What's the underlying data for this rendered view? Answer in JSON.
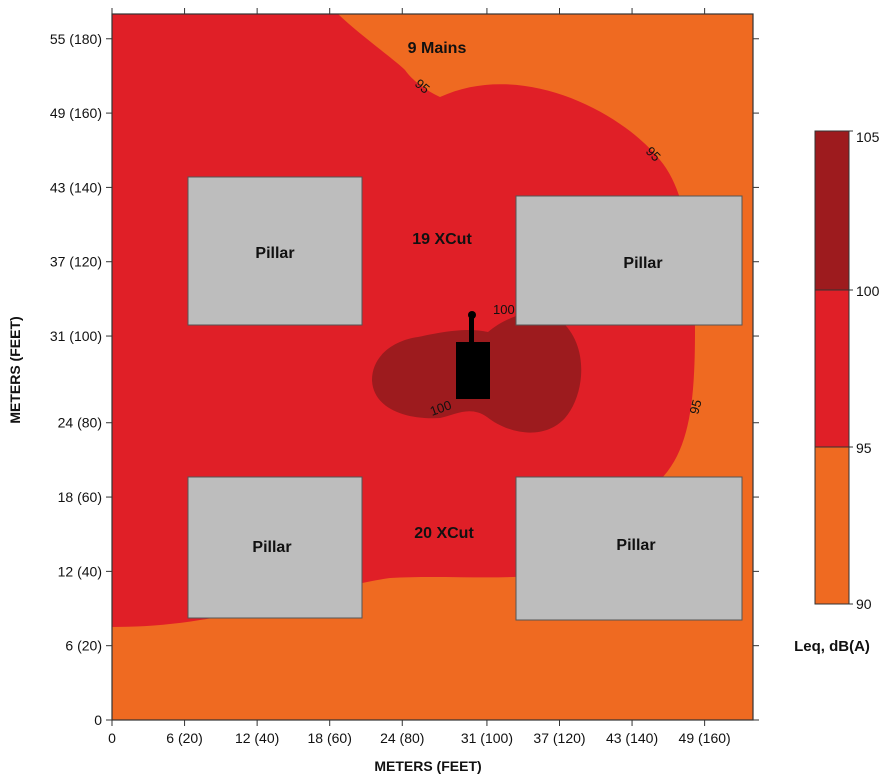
{
  "chart_data": {
    "type": "heatmap",
    "title": "",
    "xlabel": "METERS (FEET)",
    "ylabel": "METERS (FEET)",
    "xlim": [
      0,
      53
    ],
    "ylim": [
      0,
      57
    ],
    "x_ticks": [
      {
        "value": 0,
        "label": "0"
      },
      {
        "value": 6,
        "label": "6 (20)"
      },
      {
        "value": 12,
        "label": "12 (40)"
      },
      {
        "value": 18,
        "label": "18 (60)"
      },
      {
        "value": 24,
        "label": "24 (80)"
      },
      {
        "value": 31,
        "label": "31 (100)"
      },
      {
        "value": 37,
        "label": "37 (120)"
      },
      {
        "value": 43,
        "label": "43 (140)"
      },
      {
        "value": 49,
        "label": "49 (160)"
      }
    ],
    "y_ticks": [
      {
        "value": 0,
        "label": "0"
      },
      {
        "value": 6,
        "label": "6 (20)"
      },
      {
        "value": 12,
        "label": "12 (40)"
      },
      {
        "value": 18,
        "label": "18 (60)"
      },
      {
        "value": 24,
        "label": "24 (80)"
      },
      {
        "value": 31,
        "label": "31 (100)"
      },
      {
        "value": 37,
        "label": "37 (120)"
      },
      {
        "value": 43,
        "label": "43 (140)"
      },
      {
        "value": 49,
        "label": "49 (160)"
      },
      {
        "value": 55,
        "label": "55 (180)"
      }
    ],
    "colors": {
      "band_90_95": "#ef6a21",
      "band_95_100": "#e01f27",
      "band_100_105": "#9d1b1e",
      "pillar": "#bdbdbd",
      "machine": "#000000"
    },
    "contour_levels": [
      {
        "value": "95",
        "label": "95"
      },
      {
        "value": "100",
        "label": "100"
      }
    ],
    "zones": [
      {
        "label": "9 Mains",
        "x": 27.5,
        "y": 53.0
      },
      {
        "label": "19 XCut",
        "x": 27.5,
        "y": 37.5
      },
      {
        "label": "20 XCut",
        "x": 27.5,
        "y": 14.5
      }
    ],
    "pillars": [
      {
        "label": "Pillar",
        "x0": 6,
        "x1": 19.5,
        "y0": 8,
        "y1": 31.2
      },
      {
        "label": "Pillar",
        "x0": 31.6,
        "x1": 49.3,
        "y0": 8,
        "y1": 31.2
      },
      {
        "label": "Pillar",
        "x0": 6,
        "x1": 19.5,
        "y0": 8,
        "y1": 19.5
      },
      {
        "label": "Pillar",
        "x0": 31.6,
        "x1": 49.3,
        "y0": 8,
        "y1": 19.5
      }
    ],
    "legend": {
      "title": "Leq, dB(A)",
      "levels": [
        "105",
        "100",
        "95",
        "90"
      ],
      "placement": "right"
    }
  }
}
